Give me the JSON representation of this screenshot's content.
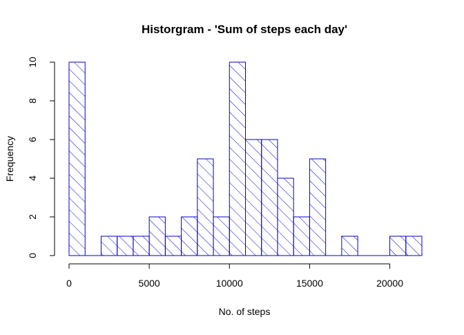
{
  "chart_data": {
    "type": "bar",
    "subtype": "histogram",
    "title": "Historgram - 'Sum of steps each day'",
    "xlabel": "No. of steps",
    "ylabel": "Frequency",
    "bin_width": 1000,
    "bins_start": [
      0,
      1000,
      2000,
      3000,
      4000,
      5000,
      6000,
      7000,
      8000,
      9000,
      10000,
      11000,
      12000,
      13000,
      14000,
      15000,
      16000,
      17000,
      18000,
      19000,
      20000,
      21000
    ],
    "values": [
      10,
      0,
      1,
      1,
      1,
      2,
      1,
      2,
      5,
      2,
      10,
      6,
      6,
      4,
      2,
      5,
      0,
      1,
      0,
      0,
      1,
      1
    ],
    "xlim": [
      0,
      22000
    ],
    "ylim": [
      0,
      10
    ],
    "x_ticks": [
      0,
      5000,
      10000,
      15000,
      20000
    ],
    "x_tick_labels": [
      "0",
      "5000",
      "10000",
      "15000",
      "20000"
    ],
    "y_ticks": [
      0,
      2,
      4,
      6,
      8,
      10
    ],
    "y_tick_labels": [
      "0",
      "2",
      "4",
      "6",
      "8",
      "10"
    ],
    "grid": false,
    "legend": "none",
    "bar_color": "#0000cd",
    "fill_pattern": "diagonal-hatch"
  }
}
